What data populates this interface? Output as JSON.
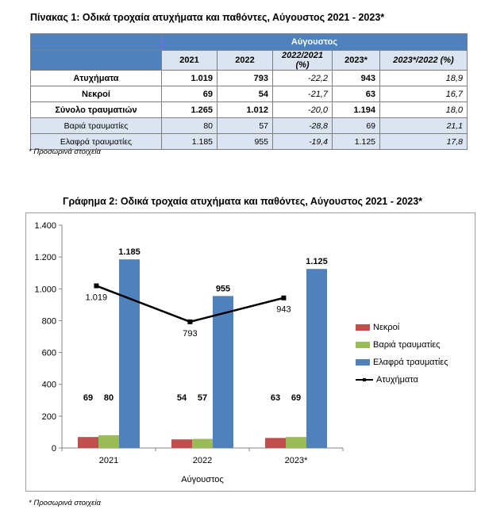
{
  "table": {
    "title": "Πίνακας 1: Οδικά τροχαία ατυχήματα και παθόντες, Αύγουστος 2021 - 2023*",
    "group_header": "Αύγουστος",
    "columns": [
      "2021",
      "2022",
      "2022/2021 (%)",
      "2023*",
      "2023*/2022 (%)"
    ],
    "rows": [
      {
        "label": "Ατυχήματα",
        "values": [
          "1.019",
          "793",
          "-22,2",
          "943",
          "18,9"
        ]
      },
      {
        "label": "Νεκροί",
        "values": [
          "69",
          "54",
          "-21,7",
          "63",
          "16,7"
        ]
      },
      {
        "label": "Σύνολο τραυματιών",
        "values": [
          "1.265",
          "1.012",
          "-20,0",
          "1.194",
          "18,0"
        ]
      },
      {
        "label": "Βαριά τραυματίες",
        "values": [
          "80",
          "57",
          "-28,8",
          "69",
          "21,1"
        ]
      },
      {
        "label": "Ελαφρά τραυματίες",
        "values": [
          "1.185",
          "955",
          "-19,4",
          "1.125",
          "17,8"
        ]
      }
    ],
    "note": "* Προσωρινά στοιχεία"
  },
  "chart_data": {
    "type": "bar",
    "title": "Γράφημα 2: Οδικά τροχαία ατυχήματα και παθόντες, Αύγουστος 2021 - 2023*",
    "xlabel": "Αύγουστος",
    "ylabel": "",
    "categories": [
      "2021",
      "2022",
      "2023*"
    ],
    "ylim": [
      0,
      1400
    ],
    "yticks": [
      0,
      200,
      400,
      600,
      800,
      1000,
      1200,
      1400
    ],
    "ytick_labels": [
      "0",
      "200",
      "400",
      "600",
      "800",
      "1.000",
      "1.200",
      "1.400"
    ],
    "grid": false,
    "legend": "right",
    "series": [
      {
        "name": "Νεκροί",
        "type": "bar",
        "color": "#c0504d",
        "values": [
          69,
          54,
          63
        ],
        "labels": [
          "69",
          "54",
          "63"
        ]
      },
      {
        "name": "Βαριά τραυματίες",
        "type": "bar",
        "color": "#9bbb59",
        "values": [
          80,
          57,
          69
        ],
        "labels": [
          "80",
          "57",
          "69"
        ]
      },
      {
        "name": "Ελαφρά τραυματίες",
        "type": "bar",
        "color": "#4f81bd",
        "values": [
          1185,
          955,
          1125
        ],
        "labels": [
          "1.185",
          "955",
          "1.125"
        ]
      },
      {
        "name": "Ατυχήματα",
        "type": "line",
        "color": "#000000",
        "values": [
          1019,
          793,
          943
        ],
        "labels": [
          "1.019",
          "793",
          "943"
        ]
      }
    ],
    "note": "* Προσωρινά στοιχεία"
  }
}
